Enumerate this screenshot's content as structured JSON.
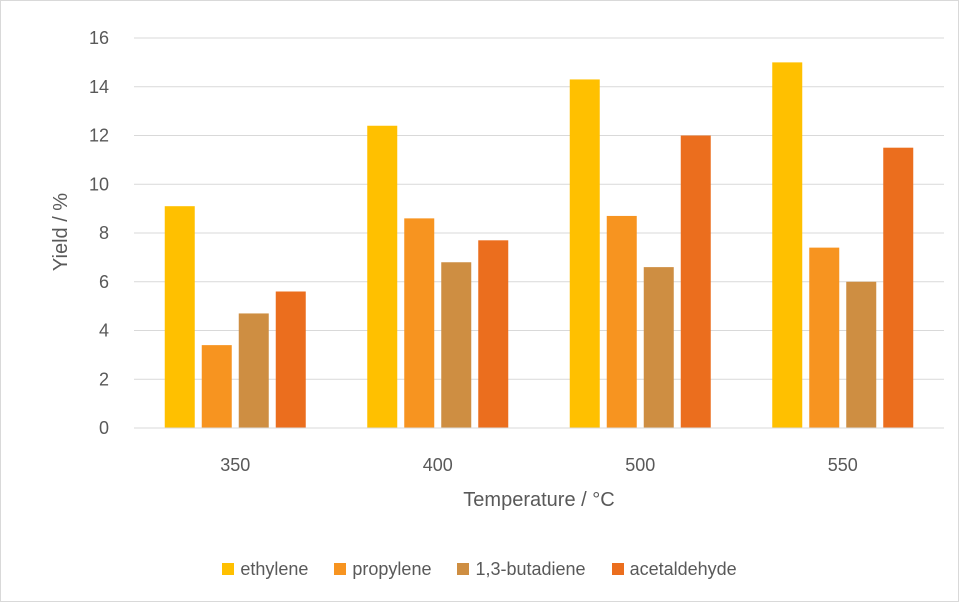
{
  "chart_data": {
    "type": "bar",
    "title": "",
    "xlabel": "Temperature / °C",
    "ylabel": "Yield / %",
    "categories": [
      "350",
      "400",
      "500",
      "550"
    ],
    "ylim": [
      0,
      16
    ],
    "yticks": [
      0,
      2,
      4,
      6,
      8,
      10,
      12,
      14,
      16
    ],
    "grid": true,
    "legend_position": "bottom",
    "series": [
      {
        "name": "ethylene",
        "color": "#FFC000",
        "values": [
          9.1,
          12.4,
          14.3,
          15.0
        ]
      },
      {
        "name": "propylene",
        "color": "#F79420",
        "values": [
          3.4,
          8.6,
          8.7,
          7.4
        ]
      },
      {
        "name": "1,3-butadiene",
        "color": "#CE8E42",
        "values": [
          4.7,
          6.8,
          6.6,
          6.0
        ]
      },
      {
        "name": "acetaldehyde",
        "color": "#EB6E1E",
        "values": [
          5.6,
          7.7,
          12.0,
          11.5
        ]
      }
    ]
  }
}
